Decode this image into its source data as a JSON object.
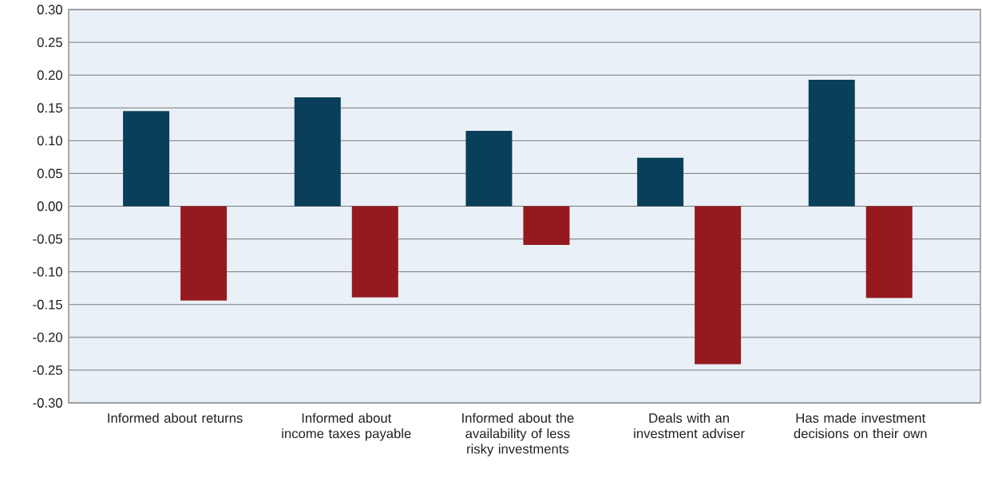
{
  "chart_data": {
    "type": "bar",
    "categories": [
      "Informed about returns",
      "Informed about income taxes payable",
      "Informed about the availability of less risky investments",
      "Deals with an investment adviser",
      "Has made investment decisions on their own"
    ],
    "series": [
      {
        "color": "#0a3f5a",
        "values": [
          0.145,
          0.166,
          0.115,
          0.074,
          0.193
        ]
      },
      {
        "color": "#951a1f",
        "values": [
          -0.144,
          -0.139,
          -0.059,
          -0.241,
          -0.14
        ]
      }
    ],
    "ylim": [
      -0.3,
      0.3
    ],
    "yticks": [
      {
        "value": -0.3,
        "label": "-0.30"
      },
      {
        "value": -0.25,
        "label": "-0.25"
      },
      {
        "value": -0.2,
        "label": "-0.20"
      },
      {
        "value": -0.15,
        "label": "-0.15"
      },
      {
        "value": -0.1,
        "label": "-0.10"
      },
      {
        "value": -0.05,
        "label": "-0.05"
      },
      {
        "value": 0,
        "label": "0.00"
      },
      {
        "value": 0.05,
        "label": "0.05"
      },
      {
        "value": 0.1,
        "label": "0.10"
      },
      {
        "value": 0.15,
        "label": "0.15"
      },
      {
        "value": 0.2,
        "label": "0.20"
      },
      {
        "value": 0.25,
        "label": "0.25"
      },
      {
        "value": 0.3,
        "label": "0.30"
      }
    ],
    "grid": "y"
  }
}
